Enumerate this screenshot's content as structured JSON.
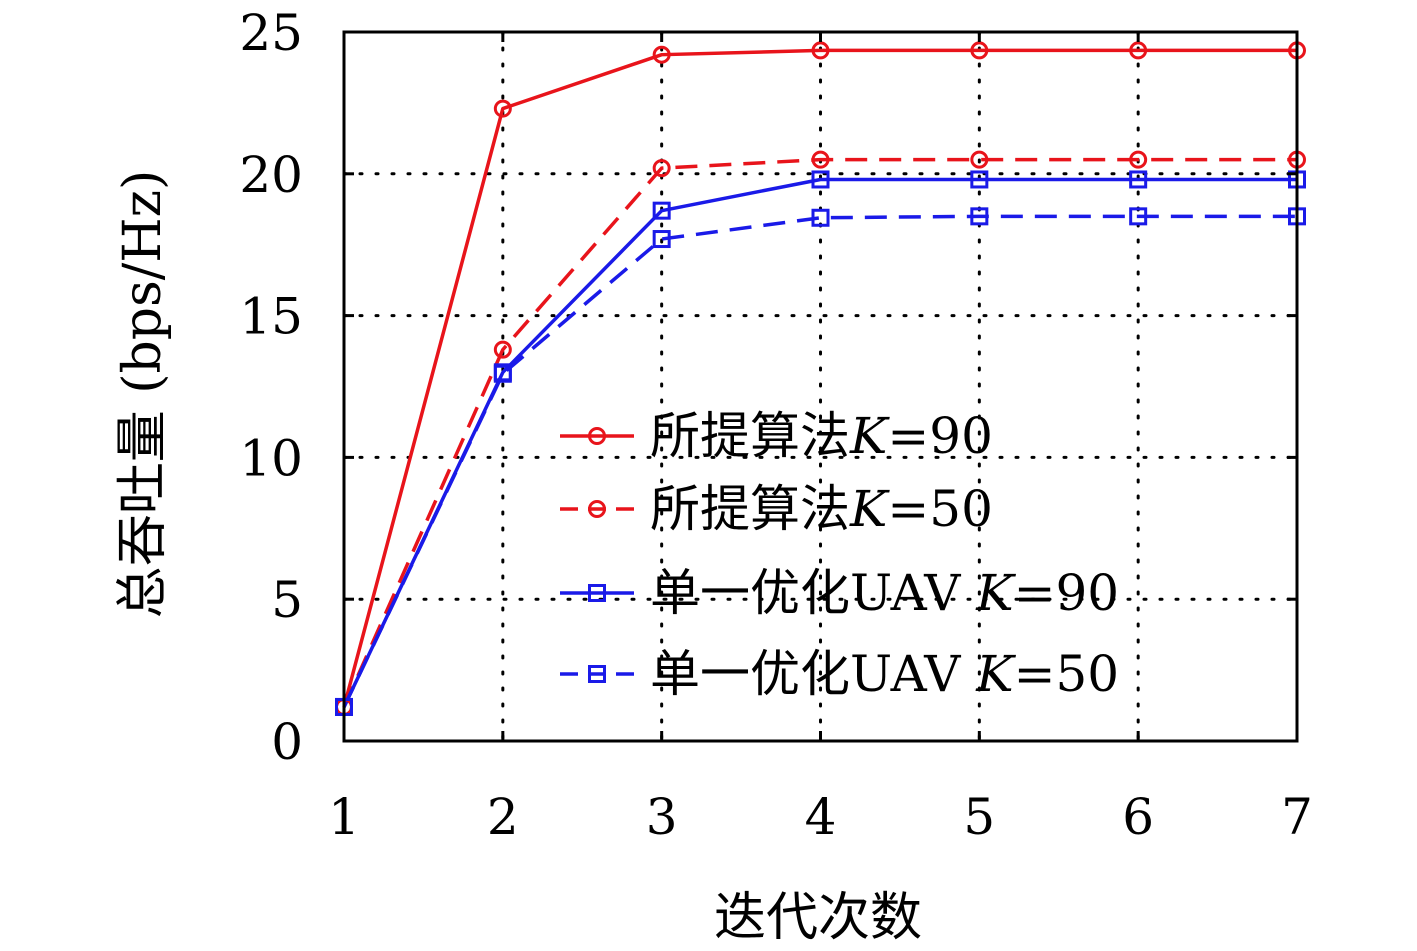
{
  "chart_data": {
    "type": "line",
    "xlabel": "迭代次数",
    "ylabel": "总吞吐量 (bps/Hz)",
    "xlim": [
      1,
      7
    ],
    "ylim": [
      0,
      25
    ],
    "x": [
      1,
      2,
      3,
      4,
      5,
      6,
      7
    ],
    "xticks": [
      "1",
      "2",
      "3",
      "4",
      "5",
      "6",
      "7"
    ],
    "yticks": [
      "0",
      "5",
      "10",
      "15",
      "20",
      "25"
    ],
    "grid": true,
    "legend_position": "center-right",
    "series": [
      {
        "name": "所提算法K=90",
        "label_main": "所提算法",
        "label_var": "K",
        "label_eq": "=90",
        "color": "#e8141b",
        "dash": "solid",
        "marker": "circle",
        "values": [
          1.2,
          22.3,
          24.2,
          24.35,
          24.35,
          24.35,
          24.35
        ]
      },
      {
        "name": "所提算法K=50",
        "label_main": "所提算法",
        "label_var": "K",
        "label_eq": "=50",
        "color": "#e8141b",
        "dash": "dashed",
        "marker": "circle",
        "values": [
          1.2,
          13.8,
          20.2,
          20.5,
          20.5,
          20.5,
          20.5
        ]
      },
      {
        "name": "单一优化UAV K=90",
        "label_main": "单一优化UAV ",
        "label_var": "K",
        "label_eq": "=90",
        "color": "#1a1ae8",
        "dash": "solid",
        "marker": "square",
        "values": [
          1.2,
          13.0,
          18.7,
          19.8,
          19.8,
          19.8,
          19.8
        ]
      },
      {
        "name": "单一优化UAV K=50",
        "label_main": "单一优化UAV ",
        "label_var": "K",
        "label_eq": "=50",
        "color": "#1a1ae8",
        "dash": "dashed",
        "marker": "square",
        "values": [
          1.2,
          12.95,
          17.7,
          18.45,
          18.5,
          18.5,
          18.5
        ]
      }
    ]
  }
}
